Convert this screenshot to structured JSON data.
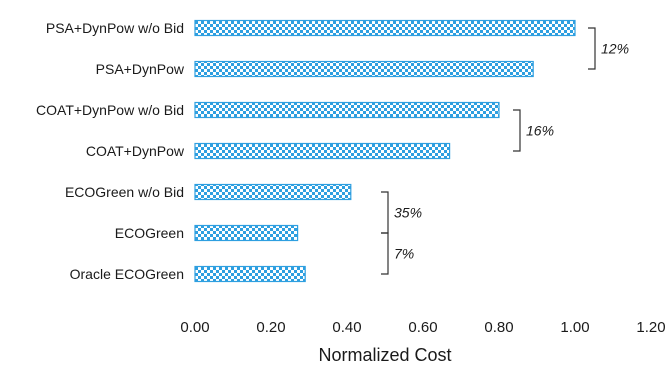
{
  "chart_data": {
    "type": "bar",
    "orientation": "horizontal",
    "categories": [
      "PSA+DynPow w/o Bid",
      "PSA+DynPow",
      "COAT+DynPow w/o Bid",
      "COAT+DynPow",
      "ECOGreen w/o Bid",
      "ECOGreen",
      "Oracle ECOGreen"
    ],
    "values": [
      1.0,
      0.89,
      0.8,
      0.67,
      0.41,
      0.27,
      0.29
    ],
    "xlabel": "Normalized Cost",
    "ylabel": "",
    "xlim": [
      0,
      1.2
    ],
    "xticks": [
      "0.00",
      "0.20",
      "0.40",
      "0.60",
      "0.80",
      "1.00",
      "1.20"
    ],
    "grid": false,
    "bar_pattern": "checkerboard",
    "bar_color": "#2e9fe0",
    "annotations": [
      {
        "text": "12%",
        "from": "PSA+DynPow w/o Bid",
        "to": "PSA+DynPow"
      },
      {
        "text": "16%",
        "from": "COAT+DynPow w/o Bid",
        "to": "COAT+DynPow"
      },
      {
        "text": "35%",
        "from": "ECOGreen w/o Bid",
        "to": "ECOGreen"
      },
      {
        "text": "7%",
        "from": "ECOGreen",
        "to": "Oracle ECOGreen"
      }
    ]
  }
}
